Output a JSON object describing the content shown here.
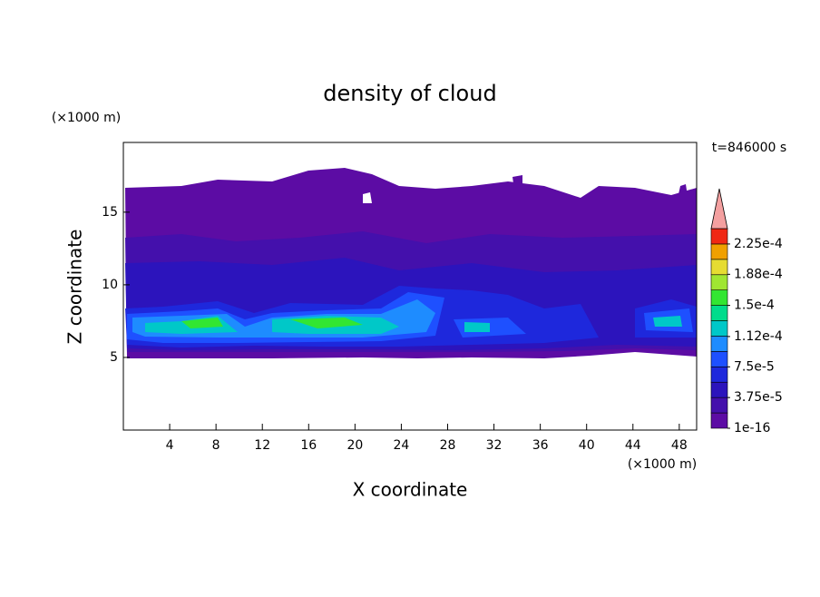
{
  "chart_data": {
    "type": "contour",
    "title": "density of cloud",
    "x_label": "X coordinate",
    "y_label": "Z coordinate",
    "x_unit": "(×1000 m)",
    "y_unit": "(×1000 m)",
    "time_label": "t=846000 s",
    "xlim": [
      0,
      49.5
    ],
    "ylim": [
      0,
      19.8
    ],
    "xticks": [
      4,
      8,
      12,
      16,
      20,
      24,
      28,
      32,
      36,
      40,
      44,
      48
    ],
    "yticks": [
      5,
      10,
      15
    ],
    "grid": false,
    "colorbar": {
      "lim": [
        1e-16,
        0.00024375
      ],
      "colors": [
        "#5c0ca4",
        "#4410ac",
        "#2c14bc",
        "#1e28dc",
        "#1e50ff",
        "#1e8cff",
        "#00c8c8",
        "#00dc8c",
        "#32e632",
        "#a0e632",
        "#e6dc32",
        "#f0a000",
        "#f02814"
      ],
      "extend_color": "#f4a0a0",
      "ticks": [
        1e-16,
        {
          "value": 3.75e-05,
          "label": "3.75e-5"
        },
        {
          "value": 7.5e-05,
          "label": "7.5e-5"
        },
        {
          "value": 0.000112,
          "label": "1.12e-4"
        },
        {
          "value": 0.00015,
          "label": "1.5e-4"
        },
        {
          "value": 0.000188,
          "label": "1.88e-4"
        },
        {
          "value": 0.000225,
          "label": "2.25e-4"
        }
      ]
    }
  }
}
